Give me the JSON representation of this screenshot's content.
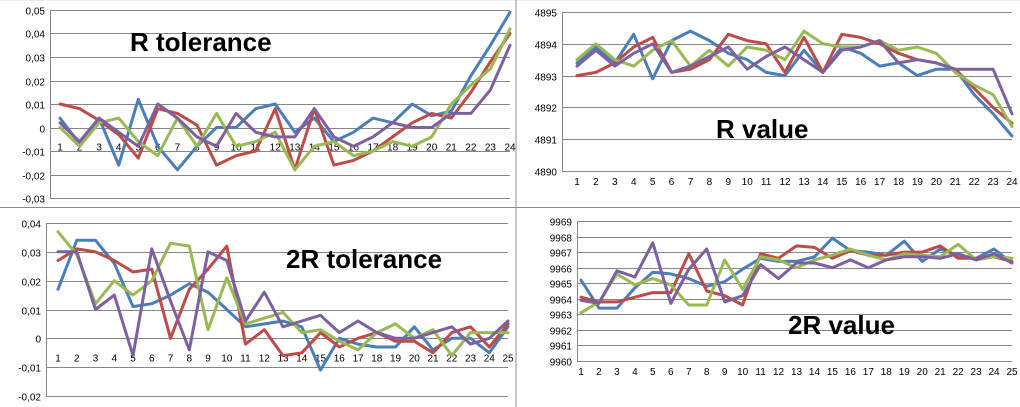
{
  "chart_data": [
    {
      "type": "line",
      "title": "R tolerance",
      "categories": [
        "1",
        "2",
        "3",
        "4",
        "5",
        "6",
        "7",
        "8",
        "9",
        "10",
        "11",
        "12",
        "13",
        "14",
        "15",
        "16",
        "17",
        "18",
        "19",
        "20",
        "21",
        "22",
        "23",
        "24"
      ],
      "yticks": [
        "0,05",
        "0,04",
        "0,03",
        "0,02",
        "0,01",
        "0",
        "-0,01",
        "-0,02",
        "-0,03"
      ],
      "ylim": [
        -0.03,
        0.05
      ],
      "grid": true,
      "legend": "none",
      "series": [
        {
          "color": "#4a7ebb",
          "values": [
            0.004,
            -0.007,
            0.004,
            -0.016,
            0.012,
            -0.008,
            -0.018,
            -0.008,
            0,
            0,
            0.008,
            0.01,
            -0.002,
            0.004,
            -0.006,
            -0.002,
            0.004,
            0.002,
            0.01,
            0.005,
            0.007,
            0.022,
            0.035,
            0.049
          ]
        },
        {
          "color": "#be4b48",
          "values": [
            0.01,
            0.008,
            0.003,
            -0.003,
            -0.013,
            0.008,
            0.006,
            0.001,
            -0.016,
            -0.012,
            -0.01,
            0.008,
            -0.018,
            0.008,
            -0.016,
            -0.014,
            -0.01,
            -0.004,
            0.002,
            0.006,
            0.004,
            0.015,
            0.028,
            0.04
          ]
        },
        {
          "color": "#98b954",
          "values": [
            0,
            -0.008,
            0.002,
            0.004,
            -0.006,
            -0.012,
            0.004,
            -0.008,
            0.006,
            -0.008,
            -0.006,
            -0.002,
            -0.018,
            -0.008,
            -0.006,
            -0.012,
            -0.01,
            -0.006,
            -0.008,
            -0.004,
            0.01,
            0.018,
            0.025,
            0.042
          ]
        },
        {
          "color": "#7d60a0",
          "values": [
            0.002,
            -0.006,
            0.004,
            -0.002,
            -0.008,
            0.01,
            0.004,
            -0.004,
            -0.008,
            0.006,
            -0.002,
            -0.004,
            -0.004,
            0.008,
            -0.004,
            -0.008,
            -0.004,
            0.002,
            0,
            0,
            0.006,
            0.006,
            0.016,
            0.035
          ]
        }
      ]
    },
    {
      "type": "line",
      "title": "R value",
      "categories": [
        "1",
        "2",
        "3",
        "4",
        "5",
        "6",
        "7",
        "8",
        "9",
        "10",
        "11",
        "12",
        "13",
        "14",
        "15",
        "16",
        "17",
        "18",
        "19",
        "20",
        "21",
        "22",
        "23",
        "24"
      ],
      "yticks": [
        "4895",
        "4894",
        "4893",
        "4892",
        "4891",
        "4890"
      ],
      "ylim": [
        4890,
        4895
      ],
      "grid": true,
      "legend": "none",
      "series": [
        {
          "color": "#4a7ebb",
          "values": [
            4893.4,
            4893.9,
            4893.4,
            4894.3,
            4892.9,
            4894.1,
            4894.4,
            4894.1,
            4893.7,
            4893.5,
            4893.1,
            4893,
            4893.8,
            4893.1,
            4893.9,
            4893.7,
            4893.3,
            4893.4,
            4893,
            4893.2,
            4893.2,
            4892.4,
            4891.8,
            4891.1
          ]
        },
        {
          "color": "#be4b48",
          "values": [
            4893,
            4893.1,
            4893.4,
            4893.9,
            4894.2,
            4893.1,
            4893.2,
            4893.5,
            4894.3,
            4894.1,
            4894,
            4893.1,
            4894.2,
            4893.1,
            4894.3,
            4894.2,
            4894,
            4893.7,
            4893.5,
            4893.4,
            4893.2,
            4892.6,
            4892,
            4891.5
          ]
        },
        {
          "color": "#98b954",
          "values": [
            4893.5,
            4894,
            4893.5,
            4893.3,
            4893.8,
            4894.1,
            4893.3,
            4893.8,
            4893.3,
            4893.9,
            4893.8,
            4893.5,
            4894.4,
            4894,
            4893.9,
            4893.9,
            4894.1,
            4893.8,
            4893.9,
            4893.7,
            4893.1,
            4892.7,
            4892.4,
            4891.4
          ]
        },
        {
          "color": "#7d60a0",
          "values": [
            4893.3,
            4893.8,
            4893.3,
            4893.7,
            4894,
            4893.1,
            4893.3,
            4893.6,
            4893.9,
            4893.2,
            4893.6,
            4893.9,
            4893.5,
            4893.1,
            4893.8,
            4893.9,
            4894.1,
            4893.4,
            4893.5,
            4893.4,
            4893.2,
            4893.2,
            4893.2,
            4891.8
          ]
        }
      ]
    },
    {
      "type": "line",
      "title": "2R tolerance",
      "categories": [
        "1",
        "2",
        "3",
        "4",
        "5",
        "6",
        "7",
        "8",
        "9",
        "10",
        "11",
        "12",
        "13",
        "14",
        "15",
        "16",
        "17",
        "18",
        "19",
        "20",
        "21",
        "22",
        "23",
        "24",
        "25"
      ],
      "yticks": [
        "0,04",
        "0,03",
        "0,02",
        "0,01",
        "0",
        "-0,01",
        "-0,02"
      ],
      "ylim": [
        -0.02,
        0.04
      ],
      "grid": true,
      "legend": "none",
      "series": [
        {
          "color": "#4a7ebb",
          "values": [
            0.017,
            0.034,
            0.034,
            0.026,
            0.011,
            0.012,
            0.015,
            0.019,
            0.016,
            0.01,
            0.004,
            0.005,
            0.006,
            0.004,
            -0.011,
            0,
            -0.002,
            -0.003,
            -0.003,
            0.004,
            -0.004,
            0,
            0,
            -0.005,
            0.004
          ]
        },
        {
          "color": "#be4b48",
          "values": [
            0.027,
            0.031,
            0.03,
            0.027,
            0.023,
            0.024,
            0,
            0.017,
            0.024,
            0.032,
            -0.002,
            0.003,
            -0.006,
            -0.005,
            0.002,
            -0.003,
            0,
            0.002,
            -0.001,
            -0.001,
            -0.005,
            0.002,
            0.004,
            -0.003,
            0.005
          ]
        },
        {
          "color": "#98b954",
          "values": [
            0.037,
            0.029,
            0.012,
            0.02,
            0.015,
            0.02,
            0.033,
            0.032,
            0.003,
            0.021,
            0.005,
            0.007,
            0.009,
            0.002,
            0.003,
            -0.001,
            -0.004,
            0.002,
            0.005,
            0,
            0.003,
            -0.006,
            0.002,
            0.002,
            0.002
          ]
        },
        {
          "color": "#7d60a0",
          "values": [
            0.03,
            0.03,
            0.01,
            0.015,
            -0.006,
            0.031,
            0.013,
            -0.004,
            0.03,
            0.027,
            0.006,
            0.016,
            0.004,
            0.006,
            0.008,
            0.002,
            0.006,
            0.002,
            0,
            0,
            0.002,
            0.004,
            -0.002,
            0,
            0.006
          ]
        }
      ]
    },
    {
      "type": "line",
      "title": "2R value",
      "categories": [
        "1",
        "2",
        "3",
        "4",
        "5",
        "6",
        "7",
        "8",
        "9",
        "10",
        "11",
        "12",
        "13",
        "14",
        "15",
        "16",
        "17",
        "18",
        "19",
        "20",
        "21",
        "22",
        "23",
        "24",
        "25"
      ],
      "yticks": [
        "9969",
        "9968",
        "9967",
        "9966",
        "9965",
        "9964",
        "9963",
        "9962",
        "9961",
        "9960"
      ],
      "ylim": [
        9960,
        9969
      ],
      "grid": true,
      "legend": "none",
      "series": [
        {
          "color": "#4a7ebb",
          "values": [
            9965.2,
            9963.4,
            9963.4,
            9964.7,
            9965.7,
            9965.6,
            9965.3,
            9964.8,
            9965.1,
            9965.9,
            9966.6,
            9966.4,
            9966.4,
            9966.7,
            9967.9,
            9967.1,
            9967,
            9966.8,
            9967.7,
            9966.4,
            9967.2,
            9966.8,
            9966.6,
            9967.2,
            9966.3
          ]
        },
        {
          "color": "#be4b48",
          "values": [
            9964.1,
            9963.8,
            9963.8,
            9964.1,
            9964.4,
            9964.4,
            9966.9,
            9964.5,
            9964.2,
            9963.6,
            9966.9,
            9966.6,
            9967.4,
            9967.3,
            9966.6,
            9967.1,
            9966.8,
            9966.8,
            9967,
            9967,
            9967.4,
            9966.6,
            9966.6,
            9966.7,
            9966.4
          ]
        },
        {
          "color": "#98b954",
          "values": [
            9963.1,
            9963.8,
            9965.6,
            9964.9,
            9965.3,
            9964.9,
            9963.6,
            9963.6,
            9966.5,
            9964.6,
            9966.7,
            9966.5,
            9966,
            9966.5,
            9966.8,
            9967.2,
            9966.8,
            9966.5,
            9966.9,
            9966.8,
            9966.7,
            9967.5,
            9966.5,
            9966.7,
            9966.6
          ]
        },
        {
          "color": "#7d60a0",
          "values": [
            9963.9,
            9963.7,
            9965.8,
            9965.4,
            9967.6,
            9963.7,
            9965.9,
            9967.2,
            9963.8,
            9964.2,
            9966.2,
            9965.3,
            9966.3,
            9966.3,
            9966,
            9966.5,
            9966,
            9966.5,
            9966.7,
            9966.7,
            9966.6,
            9966.9,
            9966.5,
            9966.9,
            9966.3
          ]
        }
      ]
    }
  ]
}
